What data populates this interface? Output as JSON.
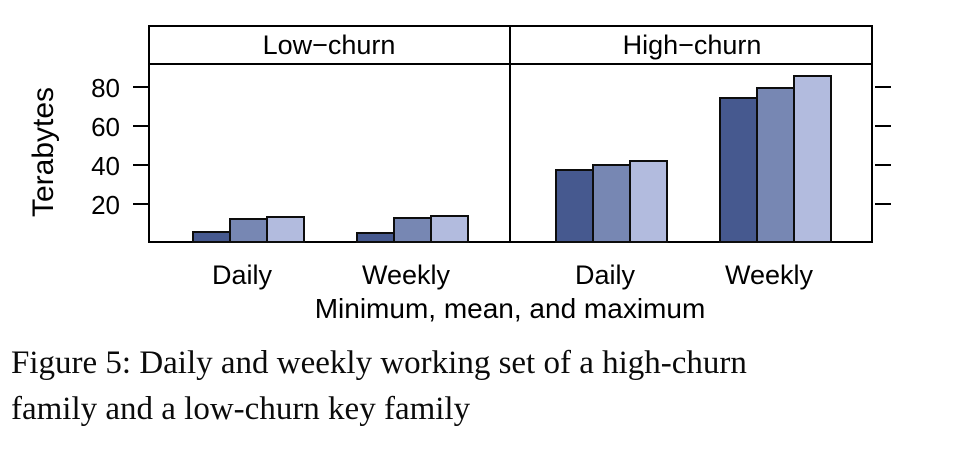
{
  "figure": {
    "caption_lines": [
      "Figure 5: Daily and weekly working set of a high-churn",
      "family and a low-churn key family"
    ]
  },
  "chart_data": {
    "type": "bar",
    "title": "",
    "ylabel": "Terabytes",
    "xlabel": "Minimum, mean, and maximum",
    "yticks": [
      20,
      40,
      60,
      80
    ],
    "ylim": [
      0,
      91
    ],
    "grid": false,
    "legend_position": "none",
    "series_names": [
      "minimum",
      "mean",
      "maximum"
    ],
    "bar_colors": [
      "#46598F",
      "#7787B3",
      "#B2BBDE"
    ],
    "bar_border_color": "#0d0d0d",
    "panels": [
      {
        "label": "Low−churn",
        "categories": [
          "Daily",
          "Weekly"
        ],
        "series": [
          {
            "name": "minimum",
            "values": [
              6,
              5.5
            ]
          },
          {
            "name": "mean",
            "values": [
              13,
              13.5
            ]
          },
          {
            "name": "maximum",
            "values": [
              14,
              14.5
            ]
          }
        ]
      },
      {
        "label": "High−churn",
        "categories": [
          "Daily",
          "Weekly"
        ],
        "series": [
          {
            "name": "minimum",
            "values": [
              38,
              74.5
            ]
          },
          {
            "name": "mean",
            "values": [
              40.5,
              80
            ]
          },
          {
            "name": "maximum",
            "values": [
              42.5,
              86
            ]
          }
        ]
      }
    ]
  }
}
